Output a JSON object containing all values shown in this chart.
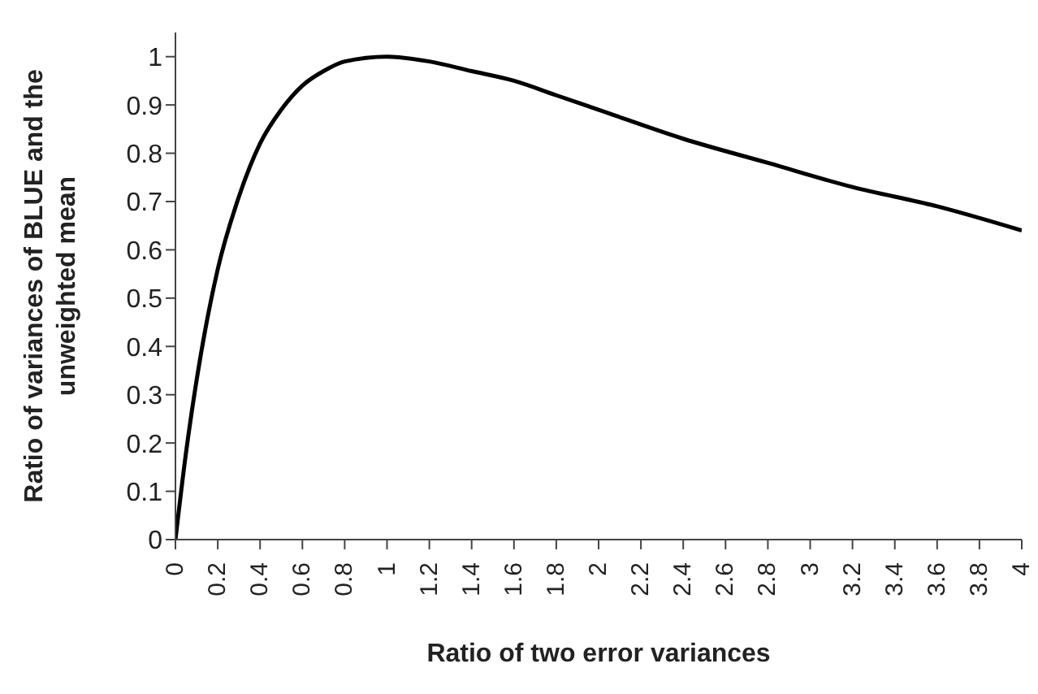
{
  "chart_data": {
    "type": "line",
    "xlabel": "Ratio of two error variances",
    "ylabel": "Ratio of variances of BLUE and the unweighted mean",
    "x": [
      0,
      0.05,
      0.1,
      0.2,
      0.3,
      0.4,
      0.5,
      0.6,
      0.7,
      0.8,
      1,
      1.2,
      1.4,
      1.6,
      1.8,
      2,
      2.4,
      2.8,
      3.2,
      3.6,
      4
    ],
    "series": [
      {
        "color": "#000000",
        "values": [
          0,
          0.18,
          0.33,
          0.56,
          0.71,
          0.82,
          0.89,
          0.94,
          0.97,
          0.99,
          1,
          0.99,
          0.97,
          0.95,
          0.92,
          0.89,
          0.83,
          0.78,
          0.73,
          0.69,
          0.64
        ]
      }
    ],
    "xlim": [
      0,
      4
    ],
    "xticks": [
      0,
      0.2,
      0.4,
      0.6,
      0.8,
      1,
      1.2,
      1.4,
      1.6,
      1.8,
      2,
      2.2,
      2.4,
      2.6,
      2.8,
      3,
      3.2,
      3.4,
      3.6,
      3.8,
      4
    ],
    "ylim": [
      0,
      1.05
    ],
    "yticks": [
      0,
      0.1,
      0.2,
      0.3,
      0.4,
      0.5,
      0.6,
      0.7,
      0.8,
      0.9,
      1
    ],
    "grid": false,
    "legend": false,
    "marker": "none",
    "line_style": "solid"
  }
}
